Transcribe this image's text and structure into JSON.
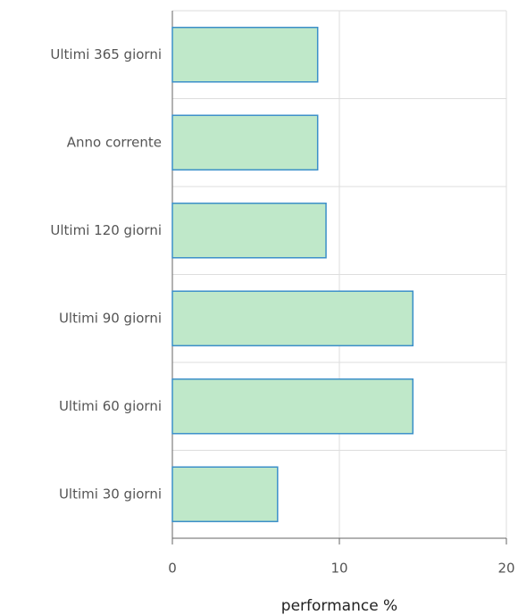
{
  "chart_data": {
    "type": "barh",
    "categories": [
      "Ultimi 365 giorni",
      "Anno corrente",
      "Ultimi 120 giorni",
      "Ultimi 90 giorni",
      "Ultimi 60 giorni",
      "Ultimi 30 giorni"
    ],
    "values": [
      8.7,
      8.7,
      9.2,
      14.4,
      14.4,
      6.3
    ],
    "color": "#bfe8c9",
    "edge_color": "#3b8fc9",
    "xlabel": "performance %",
    "xlim": [
      0,
      20
    ],
    "xticks": [
      0,
      10,
      20
    ],
    "grid": true
  }
}
